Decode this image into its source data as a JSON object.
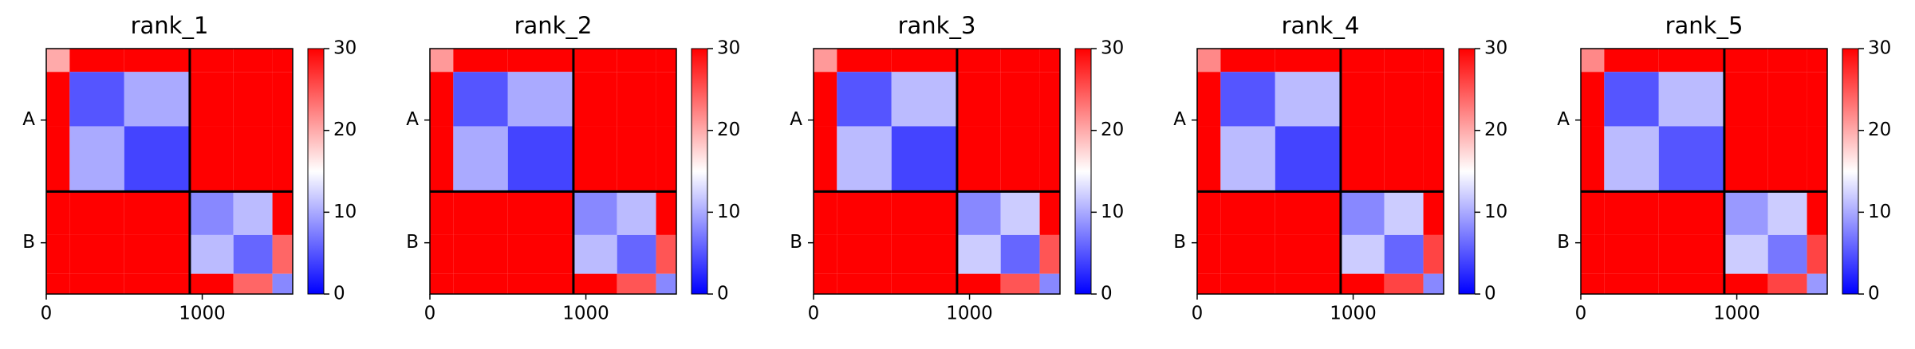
{
  "chart_data": [
    {
      "type": "heatmap",
      "title": "rank_1",
      "colormap": "bwr",
      "bins": [
        0,
        150,
        500,
        920,
        1200,
        1450,
        1580
      ],
      "z": [
        [
          20,
          30,
          30,
          30,
          30,
          30
        ],
        [
          30,
          5,
          10,
          30,
          30,
          30
        ],
        [
          30,
          10,
          4,
          30,
          30,
          30
        ],
        [
          30,
          30,
          30,
          8,
          11,
          30
        ],
        [
          30,
          30,
          30,
          11,
          6,
          24
        ],
        [
          30,
          30,
          30,
          30,
          24,
          8
        ]
      ],
      "xlim": [
        0,
        1580
      ],
      "xticks": [
        0,
        1000
      ],
      "ylim": [
        1580,
        0
      ],
      "yticks": [
        {
          "value": 460,
          "label": "A"
        },
        {
          "value": 1250,
          "label": "B"
        }
      ],
      "clim": [
        0,
        30
      ],
      "cticks": [
        0,
        10,
        20,
        30
      ]
    },
    {
      "type": "heatmap",
      "title": "rank_2",
      "colormap": "bwr",
      "bins": [
        0,
        150,
        500,
        920,
        1200,
        1450,
        1580
      ],
      "z": [
        [
          21,
          30,
          30,
          30,
          30,
          30
        ],
        [
          30,
          5,
          10,
          30,
          30,
          30
        ],
        [
          30,
          10,
          4,
          30,
          30,
          30
        ],
        [
          30,
          30,
          30,
          8,
          11,
          30
        ],
        [
          30,
          30,
          30,
          11,
          6,
          25
        ],
        [
          30,
          30,
          30,
          30,
          25,
          8
        ]
      ],
      "xlim": [
        0,
        1580
      ],
      "xticks": [
        0,
        1000
      ],
      "ylim": [
        1580,
        0
      ],
      "yticks": [
        {
          "value": 460,
          "label": "A"
        },
        {
          "value": 1250,
          "label": "B"
        }
      ],
      "clim": [
        0,
        30
      ],
      "cticks": [
        0,
        10,
        20,
        30
      ]
    },
    {
      "type": "heatmap",
      "title": "rank_3",
      "colormap": "bwr",
      "bins": [
        0,
        150,
        500,
        920,
        1200,
        1450,
        1580
      ],
      "z": [
        [
          21,
          30,
          30,
          30,
          30,
          30
        ],
        [
          30,
          5,
          11,
          30,
          30,
          30
        ],
        [
          30,
          11,
          4,
          30,
          30,
          30
        ],
        [
          30,
          30,
          30,
          8,
          12,
          30
        ],
        [
          30,
          30,
          30,
          12,
          6,
          25
        ],
        [
          30,
          30,
          30,
          30,
          25,
          8
        ]
      ],
      "xlim": [
        0,
        1580
      ],
      "xticks": [
        0,
        1000
      ],
      "ylim": [
        1580,
        0
      ],
      "yticks": [
        {
          "value": 460,
          "label": "A"
        },
        {
          "value": 1250,
          "label": "B"
        }
      ],
      "clim": [
        0,
        30
      ],
      "cticks": [
        0,
        10,
        20,
        30
      ]
    },
    {
      "type": "heatmap",
      "title": "rank_4",
      "colormap": "bwr",
      "bins": [
        0,
        150,
        500,
        920,
        1200,
        1450,
        1580
      ],
      "z": [
        [
          22,
          30,
          30,
          30,
          30,
          30
        ],
        [
          30,
          5,
          11,
          30,
          30,
          30
        ],
        [
          30,
          11,
          4,
          30,
          30,
          30
        ],
        [
          30,
          30,
          30,
          8,
          12,
          30
        ],
        [
          30,
          30,
          30,
          12,
          6,
          26
        ],
        [
          30,
          30,
          30,
          30,
          26,
          8
        ]
      ],
      "xlim": [
        0,
        1580
      ],
      "xticks": [
        0,
        1000
      ],
      "ylim": [
        1580,
        0
      ],
      "yticks": [
        {
          "value": 460,
          "label": "A"
        },
        {
          "value": 1250,
          "label": "B"
        }
      ],
      "clim": [
        0,
        30
      ],
      "cticks": [
        0,
        10,
        20,
        30
      ]
    },
    {
      "type": "heatmap",
      "title": "rank_5",
      "colormap": "bwr",
      "bins": [
        0,
        150,
        500,
        920,
        1200,
        1450,
        1580
      ],
      "z": [
        [
          22,
          30,
          30,
          30,
          30,
          30
        ],
        [
          30,
          5,
          11,
          30,
          30,
          30
        ],
        [
          30,
          11,
          5,
          30,
          30,
          30
        ],
        [
          30,
          30,
          30,
          9,
          12,
          30
        ],
        [
          30,
          30,
          30,
          12,
          7,
          26
        ],
        [
          30,
          30,
          30,
          30,
          26,
          9
        ]
      ],
      "xlim": [
        0,
        1580
      ],
      "xticks": [
        0,
        1000
      ],
      "ylim": [
        1580,
        0
      ],
      "yticks": [
        {
          "value": 460,
          "label": "A"
        },
        {
          "value": 1250,
          "label": "B"
        }
      ],
      "clim": [
        0,
        30
      ],
      "cticks": [
        0,
        10,
        20,
        30
      ]
    }
  ]
}
